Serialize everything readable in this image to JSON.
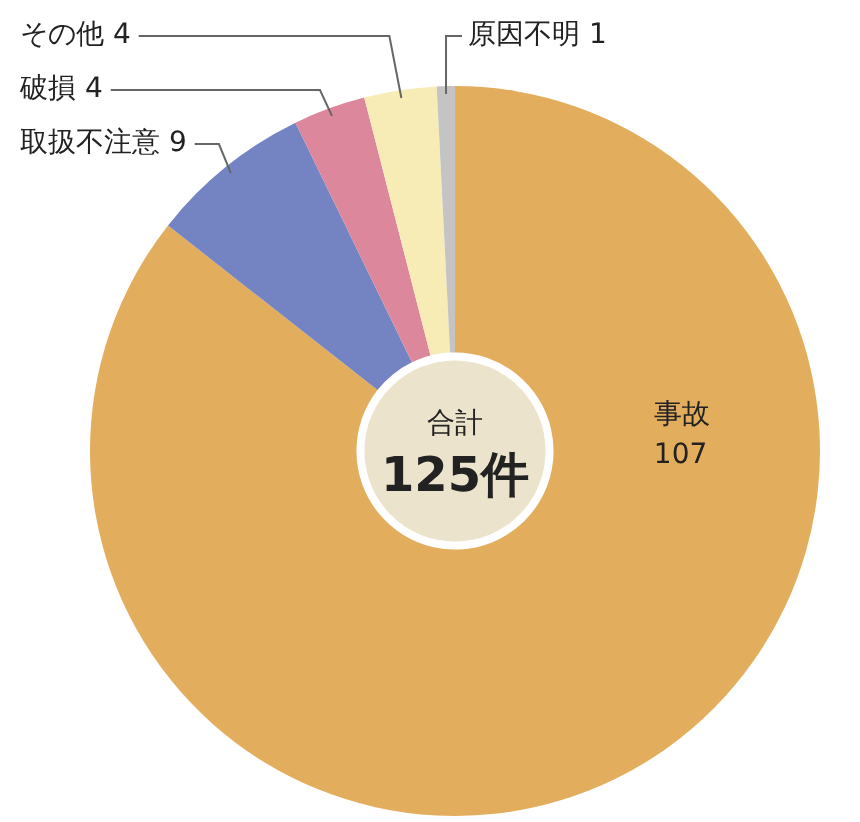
{
  "chart_data": {
    "type": "donut",
    "categories": [
      "事故",
      "取扱不注意",
      "破損",
      "その他",
      "原因不明"
    ],
    "values": [
      107,
      9,
      4,
      4,
      1
    ],
    "colors": [
      "#e3ad5e",
      "#7484c2",
      "#dc879c",
      "#f8ecb6",
      "#c4c4c4"
    ],
    "data_labels": true,
    "legend": false,
    "annotations": [
      "合計",
      "125件"
    ]
  }
}
